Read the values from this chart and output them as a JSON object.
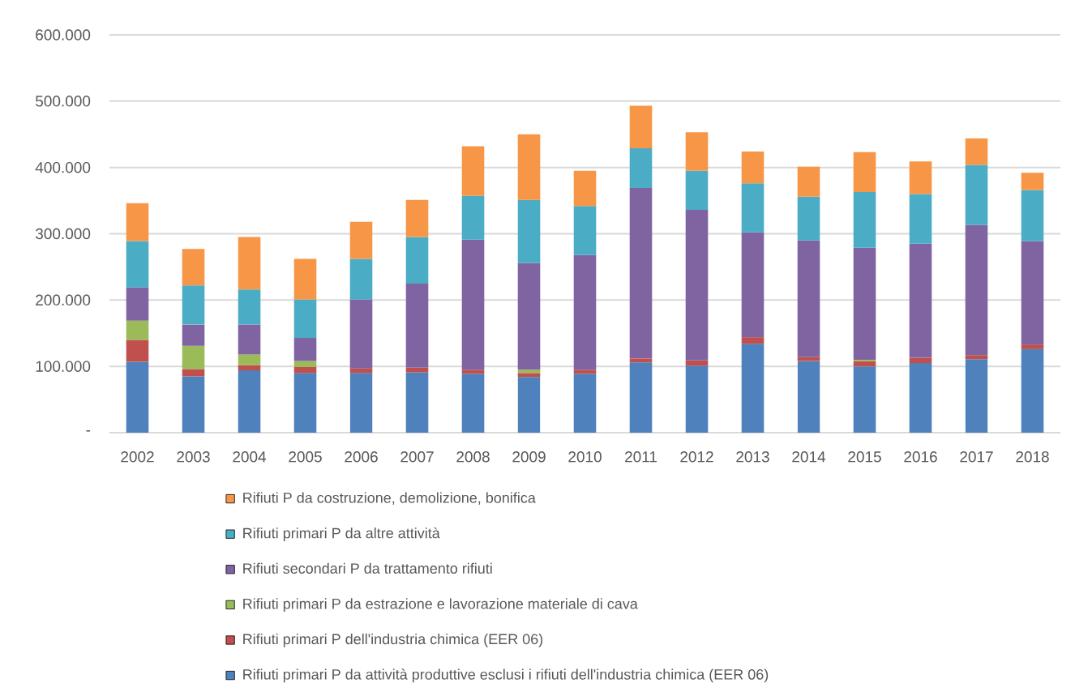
{
  "chart_data": {
    "type": "bar",
    "stacked": true,
    "categories": [
      "2002",
      "2003",
      "2004",
      "2005",
      "2006",
      "2007",
      "2008",
      "2009",
      "2010",
      "2011",
      "2012",
      "2013",
      "2014",
      "2015",
      "2016",
      "2017",
      "2018"
    ],
    "series": [
      {
        "name": "Rifiuti primari P da attività produttive esclusi i rifiuti dell'industria chimica (EER 06)",
        "color": "#4f81bd",
        "values": [
          107000,
          85000,
          94000,
          90000,
          90000,
          91000,
          89000,
          84000,
          89000,
          106000,
          101000,
          134000,
          108000,
          100000,
          105000,
          111000,
          126000
        ]
      },
      {
        "name": "Rifiuti primari P dell'industria chimica (EER 06)",
        "color": "#c0504d",
        "values": [
          33000,
          11000,
          8000,
          9000,
          7000,
          7000,
          6000,
          6000,
          6000,
          6000,
          8000,
          10000,
          6000,
          8000,
          8000,
          6000,
          7000
        ]
      },
      {
        "name": "Rifiuti primari P da estrazione e lavorazione materiale di cava",
        "color": "#9bbb59",
        "values": [
          29000,
          35000,
          16000,
          9000,
          null,
          null,
          null,
          5000,
          null,
          null,
          null,
          null,
          null,
          2000,
          null,
          null,
          null
        ]
      },
      {
        "name": "Rifiuti secondari P da trattamento rifiuti",
        "color": "#8064a2",
        "values": [
          50000,
          32000,
          45000,
          35000,
          104000,
          127000,
          196000,
          161000,
          173000,
          257000,
          227000,
          158000,
          176000,
          169000,
          172000,
          196000,
          156000
        ]
      },
      {
        "name": "Rifiuti primari P da altre attività",
        "color": "#4bacc6",
        "values": [
          70000,
          59000,
          53000,
          58000,
          61000,
          70000,
          66000,
          95000,
          74000,
          60000,
          59000,
          74000,
          66000,
          84000,
          75000,
          91000,
          77000
        ]
      },
      {
        "name": "Rifiuti P da costruzione, demolizione, bonifica",
        "color": "#f79646",
        "values": [
          57000,
          55000,
          79000,
          61000,
          56000,
          56000,
          75000,
          99000,
          53000,
          64000,
          58000,
          48000,
          45000,
          60000,
          49000,
          40000,
          26000
        ]
      }
    ],
    "ylim": [
      0,
      600000
    ],
    "yticks": [
      {
        "value": 0,
        "label": "-"
      },
      {
        "value": 100000,
        "label": "100.000"
      },
      {
        "value": 200000,
        "label": "200.000"
      },
      {
        "value": 300000,
        "label": "300.000"
      },
      {
        "value": 400000,
        "label": "400.000"
      },
      {
        "value": 500000,
        "label": "500.000"
      },
      {
        "value": 600000,
        "label": "600.000"
      }
    ],
    "grid": "y",
    "legend": "bottom"
  }
}
